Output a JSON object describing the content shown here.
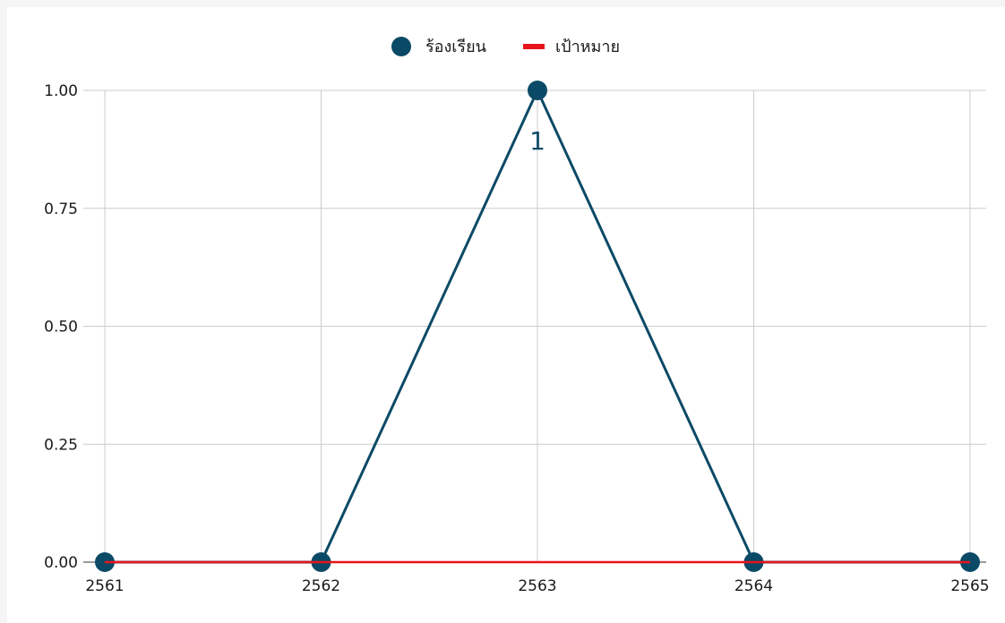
{
  "chart_data": {
    "type": "line",
    "categories": [
      "2561",
      "2562",
      "2563",
      "2564",
      "2565"
    ],
    "series": [
      {
        "name": "ร้องเรียน",
        "values": [
          0,
          0,
          1,
          0,
          0
        ],
        "color": "#0b4a66",
        "marker": "circle",
        "data_labels": [
          null,
          null,
          "1",
          null,
          null
        ]
      },
      {
        "name": "เป้าหมาย",
        "values": [
          0,
          0,
          0,
          0,
          0
        ],
        "color": "#e8141b",
        "marker": "none"
      }
    ],
    "y_ticks": [
      "0.00",
      "0.25",
      "0.50",
      "0.75",
      "1.00"
    ],
    "ylim": [
      0,
      1
    ],
    "grid": true,
    "legend": "top-center"
  }
}
